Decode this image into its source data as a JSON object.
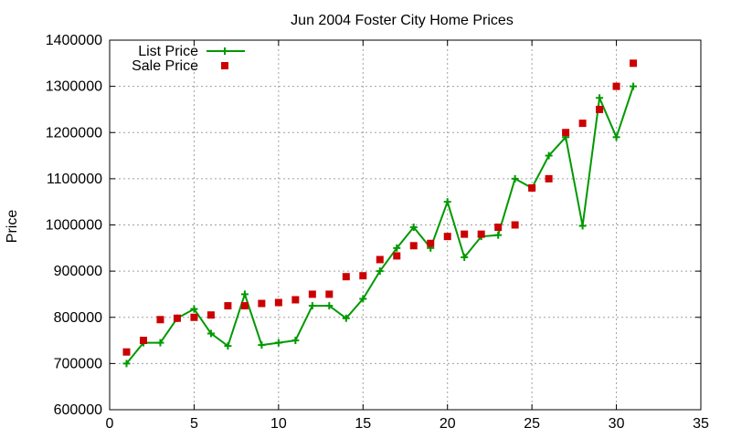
{
  "chart_data": {
    "type": "line",
    "title": "Jun 2004 Foster City Home Prices",
    "xlabel": "",
    "ylabel": "Price",
    "xlim": [
      0,
      35
    ],
    "ylim": [
      600000,
      1400000
    ],
    "xticks": [
      "0",
      "5",
      "10",
      "15",
      "20",
      "25",
      "30",
      "35"
    ],
    "yticks": [
      "600000",
      "700000",
      "800000",
      "900000",
      "1000000",
      "1100000",
      "1200000",
      "1300000",
      "1400000"
    ],
    "grid": true,
    "legend_position": "top-left",
    "series": [
      {
        "name": "List Price",
        "style": "linespoints",
        "marker": "plus",
        "color": "#009900",
        "x": [
          1,
          2,
          3,
          4,
          5,
          6,
          7,
          8,
          9,
          10,
          11,
          12,
          13,
          14,
          15,
          16,
          17,
          18,
          19,
          20,
          21,
          22,
          23,
          24,
          25,
          26,
          27,
          28,
          29,
          30,
          31
        ],
        "y": [
          700000,
          745000,
          745000,
          798000,
          818000,
          765000,
          738000,
          850000,
          740000,
          745000,
          750000,
          825000,
          825000,
          798000,
          840000,
          900000,
          950000,
          995000,
          950000,
          1050000,
          930000,
          975000,
          978000,
          1100000,
          1080000,
          1150000,
          1190000,
          998000,
          1275000,
          1190000,
          1300000
        ]
      },
      {
        "name": "Sale Price",
        "style": "points",
        "marker": "square",
        "color": "#cc0000",
        "x": [
          1,
          2,
          3,
          4,
          5,
          6,
          7,
          8,
          9,
          10,
          11,
          12,
          13,
          14,
          15,
          16,
          17,
          18,
          19,
          20,
          21,
          22,
          23,
          24,
          25,
          26,
          27,
          28,
          29,
          30,
          31
        ],
        "y": [
          725000,
          750000,
          795000,
          798000,
          800000,
          805000,
          825000,
          825000,
          830000,
          832000,
          838000,
          850000,
          850000,
          888000,
          890000,
          925000,
          933000,
          955000,
          960000,
          975000,
          980000,
          980000,
          995000,
          1000000,
          1080000,
          1100000,
          1200000,
          1220000,
          1250000,
          1300000,
          1350000
        ]
      }
    ]
  }
}
